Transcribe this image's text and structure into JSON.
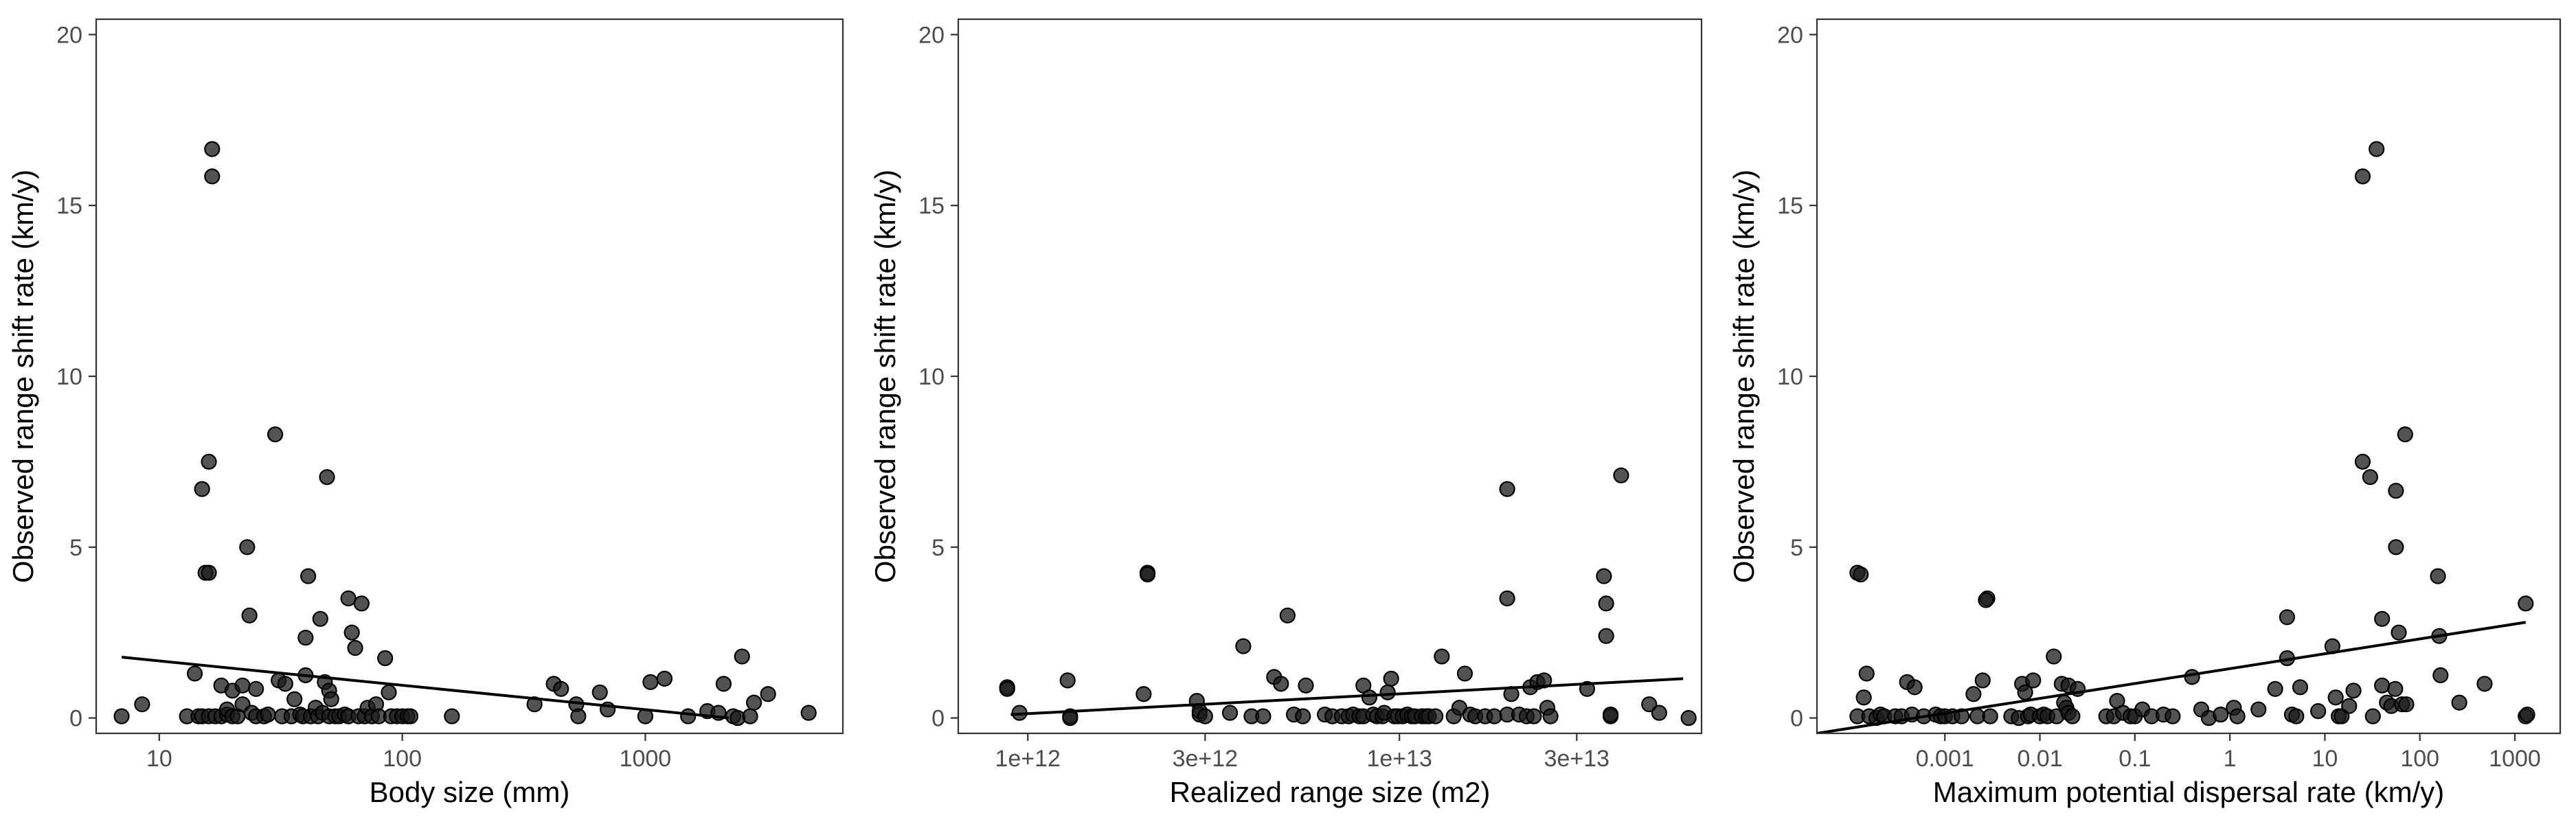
{
  "chart_data": [
    {
      "type": "scatter",
      "xscale": "log",
      "xlabel": "Body size (mm)",
      "ylabel": "Observed range shift rate (km/y)",
      "xlim": [
        5.5,
        6500
      ],
      "ylim": [
        -0.45,
        20.45
      ],
      "grid": false,
      "xticks": [
        10,
        100,
        1000
      ],
      "xtick_labels": [
        "10",
        "100",
        "1000"
      ],
      "yticks": [
        0,
        5,
        10,
        15,
        20
      ],
      "ytick_labels": [
        "0",
        "5",
        "10",
        "15",
        "20"
      ],
      "fit_line": [
        [
          7,
          1.78
        ],
        [
          2200,
          0.0
        ]
      ],
      "points": [
        [
          7,
          0.05
        ],
        [
          8.5,
          0.4
        ],
        [
          13,
          0.05
        ],
        [
          14,
          1.3
        ],
        [
          15,
          6.7
        ],
        [
          15.5,
          4.25
        ],
        [
          16,
          4.25
        ],
        [
          16,
          7.5
        ],
        [
          16.5,
          15.85
        ],
        [
          16.5,
          16.65
        ],
        [
          14.5,
          0.05
        ],
        [
          15,
          0.05
        ],
        [
          16,
          0.05
        ],
        [
          17,
          0.05
        ],
        [
          18,
          0.05
        ],
        [
          18,
          0.95
        ],
        [
          19,
          0.1
        ],
        [
          19,
          0.25
        ],
        [
          20,
          0.05
        ],
        [
          20,
          0.8
        ],
        [
          21,
          0.05
        ],
        [
          22,
          0.4
        ],
        [
          22,
          0.95
        ],
        [
          23,
          5.0
        ],
        [
          23.5,
          3.0
        ],
        [
          24,
          0.15
        ],
        [
          25,
          0.05
        ],
        [
          25,
          0.85
        ],
        [
          27,
          0.05
        ],
        [
          28,
          0.1
        ],
        [
          30,
          8.3
        ],
        [
          31,
          1.1
        ],
        [
          32,
          0.05
        ],
        [
          33,
          1.0
        ],
        [
          35,
          0.05
        ],
        [
          36,
          0.55
        ],
        [
          38,
          0.1
        ],
        [
          39,
          0.05
        ],
        [
          40,
          1.25
        ],
        [
          40,
          2.35
        ],
        [
          41,
          4.15
        ],
        [
          42,
          0.05
        ],
        [
          44,
          0.3
        ],
        [
          45,
          0.05
        ],
        [
          46,
          2.9
        ],
        [
          47,
          0.15
        ],
        [
          48,
          1.05
        ],
        [
          49,
          7.05
        ],
        [
          50,
          0.05
        ],
        [
          50,
          0.8
        ],
        [
          51,
          0.55
        ],
        [
          53,
          0.05
        ],
        [
          55,
          0.05
        ],
        [
          58,
          0.1
        ],
        [
          60,
          3.5
        ],
        [
          60,
          0.05
        ],
        [
          62,
          2.5
        ],
        [
          64,
          2.05
        ],
        [
          66,
          0.05
        ],
        [
          68,
          3.35
        ],
        [
          70,
          0.05
        ],
        [
          72,
          0.3
        ],
        [
          75,
          0.05
        ],
        [
          78,
          0.4
        ],
        [
          80,
          0.05
        ],
        [
          85,
          1.75
        ],
        [
          88,
          0.75
        ],
        [
          90,
          0.05
        ],
        [
          95,
          0.05
        ],
        [
          100,
          0.05
        ],
        [
          105,
          0.05
        ],
        [
          108,
          0.05
        ],
        [
          160,
          0.05
        ],
        [
          350,
          0.4
        ],
        [
          420,
          1.0
        ],
        [
          450,
          0.85
        ],
        [
          520,
          0.4
        ],
        [
          530,
          0.05
        ],
        [
          650,
          0.75
        ],
        [
          700,
          0.25
        ],
        [
          1000,
          0.05
        ],
        [
          1050,
          1.05
        ],
        [
          1200,
          1.15
        ],
        [
          1500,
          0.05
        ],
        [
          1800,
          0.2
        ],
        [
          2000,
          0.15
        ],
        [
          2100,
          1.0
        ],
        [
          2300,
          0.05
        ],
        [
          2400,
          0.0
        ],
        [
          2500,
          1.8
        ],
        [
          2700,
          0.05
        ],
        [
          2800,
          0.45
        ],
        [
          3200,
          0.7
        ],
        [
          4700,
          0.15
        ]
      ]
    },
    {
      "type": "scatter",
      "xscale": "log",
      "xlabel": "Realized range size (m2)",
      "ylabel": "Observed range shift rate (km/y)",
      "xlim": [
        650000000000.0,
        65000000000000.0
      ],
      "ylim": [
        -0.45,
        20.45
      ],
      "grid": false,
      "xticks": [
        1000000000000.0,
        3000000000000.0,
        10000000000000.0,
        30000000000000.0
      ],
      "xtick_labels": [
        "1e+12",
        "3e+12",
        "1e+13",
        "3e+13"
      ],
      "yticks": [
        0,
        5,
        10,
        15,
        20
      ],
      "ytick_labels": [
        "0",
        "5",
        "10",
        "15",
        "20"
      ],
      "fit_line": [
        [
          900000000000.0,
          0.1
        ],
        [
          58000000000000.0,
          1.15
        ]
      ],
      "points": [
        [
          880000000000.0,
          0.9
        ],
        [
          880000000000.0,
          0.85
        ],
        [
          950000000000.0,
          0.15
        ],
        [
          1280000000000.0,
          1.1
        ],
        [
          1300000000000.0,
          0.05
        ],
        [
          1300000000000.0,
          0.0
        ],
        [
          2100000000000.0,
          4.25
        ],
        [
          2100000000000.0,
          4.2
        ],
        [
          2050000000000.0,
          0.7
        ],
        [
          2850000000000.0,
          0.5
        ],
        [
          2900000000000.0,
          0.1
        ],
        [
          2900000000000.0,
          0.2
        ],
        [
          3000000000000.0,
          0.05
        ],
        [
          3500000000000.0,
          0.15
        ],
        [
          3800000000000.0,
          2.1
        ],
        [
          4000000000000.0,
          0.05
        ],
        [
          4300000000000.0,
          0.05
        ],
        [
          4600000000000.0,
          1.2
        ],
        [
          4800000000000.0,
          1.0
        ],
        [
          5000000000000.0,
          3.0
        ],
        [
          5200000000000.0,
          0.1
        ],
        [
          5500000000000.0,
          0.05
        ],
        [
          5600000000000.0,
          0.95
        ],
        [
          6300000000000.0,
          0.1
        ],
        [
          6600000000000.0,
          0.05
        ],
        [
          7000000000000.0,
          0.05
        ],
        [
          7300000000000.0,
          0.05
        ],
        [
          7500000000000.0,
          0.1
        ],
        [
          7800000000000.0,
          0.05
        ],
        [
          8000000000000.0,
          0.05
        ],
        [
          8000000000000.0,
          0.95
        ],
        [
          8300000000000.0,
          0.6
        ],
        [
          8500000000000.0,
          0.1
        ],
        [
          8700000000000.0,
          0.05
        ],
        [
          9000000000000.0,
          0.05
        ],
        [
          9100000000000.0,
          0.15
        ],
        [
          9300000000000.0,
          0.75
        ],
        [
          9500000000000.0,
          1.15
        ],
        [
          9700000000000.0,
          0.05
        ],
        [
          9900000000000.0,
          0.05
        ],
        [
          10200000000000.0,
          0.05
        ],
        [
          10500000000000.0,
          0.1
        ],
        [
          10800000000000.0,
          0.05
        ],
        [
          11000000000000.0,
          0.05
        ],
        [
          11500000000000.0,
          0.05
        ],
        [
          11800000000000.0,
          0.05
        ],
        [
          12000000000000.0,
          0.05
        ],
        [
          12500000000000.0,
          0.05
        ],
        [
          13000000000000.0,
          1.8
        ],
        [
          14000000000000.0,
          0.05
        ],
        [
          14500000000000.0,
          0.3
        ],
        [
          15000000000000.0,
          1.3
        ],
        [
          15500000000000.0,
          0.1
        ],
        [
          16000000000000.0,
          0.05
        ],
        [
          17000000000000.0,
          0.05
        ],
        [
          18000000000000.0,
          0.05
        ],
        [
          19500000000000.0,
          6.7
        ],
        [
          19500000000000.0,
          3.5
        ],
        [
          19500000000000.0,
          0.1
        ],
        [
          20000000000000.0,
          0.7
        ],
        [
          21000000000000.0,
          0.1
        ],
        [
          22000000000000.0,
          0.05
        ],
        [
          22500000000000.0,
          0.9
        ],
        [
          23000000000000.0,
          0.05
        ],
        [
          23500000000000.0,
          1.05
        ],
        [
          24500000000000.0,
          1.1
        ],
        [
          25000000000000.0,
          0.3
        ],
        [
          25500000000000.0,
          0.05
        ],
        [
          32000000000000.0,
          0.85
        ],
        [
          35500000000000.0,
          4.15
        ],
        [
          36000000000000.0,
          3.35
        ],
        [
          36000000000000.0,
          2.4
        ],
        [
          37000000000000.0,
          0.05
        ],
        [
          37000000000000.0,
          0.1
        ],
        [
          39500000000000.0,
          7.1
        ],
        [
          47000000000000.0,
          0.4
        ],
        [
          50000000000000.0,
          0.15
        ],
        [
          60000000000000.0,
          0.0
        ]
      ]
    },
    {
      "type": "scatter",
      "xscale": "log",
      "xlabel": "Maximum potential dispersal rate (km/y)",
      "ylabel": "Observed range shift rate (km/y)",
      "xlim": [
        4.5e-05,
        3000
      ],
      "ylim": [
        -0.45,
        20.45
      ],
      "grid": false,
      "xticks": [
        0.001,
        0.01,
        0.1,
        1,
        10,
        100,
        1000
      ],
      "xtick_labels": [
        "0.001",
        "0.01",
        "0.1",
        "1",
        "10",
        "100",
        "1000"
      ],
      "yticks": [
        0,
        5,
        10,
        15,
        20
      ],
      "ytick_labels": [
        "0",
        "5",
        "10",
        "15",
        "20"
      ],
      "fit_line": [
        [
          4.5e-05,
          -0.45
        ],
        [
          1300,
          2.8
        ]
      ],
      "points": [
        [
          0.00012,
          4.25
        ],
        [
          0.00013,
          4.2
        ],
        [
          0.00012,
          0.05
        ],
        [
          0.00014,
          0.6
        ],
        [
          0.00015,
          1.3
        ],
        [
          0.00016,
          0.05
        ],
        [
          0.00019,
          0.0
        ],
        [
          0.00021,
          0.1
        ],
        [
          0.00023,
          0.05
        ],
        [
          0.0003,
          0.05
        ],
        [
          0.00035,
          0.05
        ],
        [
          0.0004,
          1.05
        ],
        [
          0.00045,
          0.1
        ],
        [
          0.00048,
          0.9
        ],
        [
          0.0006,
          0.05
        ],
        [
          0.0008,
          0.1
        ],
        [
          0.0009,
          0.05
        ],
        [
          0.001,
          0.05
        ],
        [
          0.0012,
          0.05
        ],
        [
          0.0015,
          0.05
        ],
        [
          0.002,
          0.7
        ],
        [
          0.0022,
          0.05
        ],
        [
          0.0025,
          1.1
        ],
        [
          0.0028,
          3.5
        ],
        [
          0.0027,
          3.45
        ],
        [
          0.003,
          0.05
        ],
        [
          0.005,
          0.05
        ],
        [
          0.006,
          0.0
        ],
        [
          0.0065,
          1.0
        ],
        [
          0.007,
          0.75
        ],
        [
          0.0075,
          0.05
        ],
        [
          0.008,
          0.1
        ],
        [
          0.0085,
          1.1
        ],
        [
          0.01,
          0.05
        ],
        [
          0.011,
          0.1
        ],
        [
          0.012,
          0.05
        ],
        [
          0.014,
          1.8
        ],
        [
          0.015,
          0.05
        ],
        [
          0.017,
          1.0
        ],
        [
          0.018,
          0.45
        ],
        [
          0.019,
          0.3
        ],
        [
          0.02,
          0.15
        ],
        [
          0.02,
          0.95
        ],
        [
          0.022,
          0.05
        ],
        [
          0.025,
          0.85
        ],
        [
          0.05,
          0.05
        ],
        [
          0.06,
          0.05
        ],
        [
          0.065,
          0.5
        ],
        [
          0.075,
          0.15
        ],
        [
          0.09,
          0.05
        ],
        [
          0.1,
          0.05
        ],
        [
          0.12,
          0.25
        ],
        [
          0.15,
          0.05
        ],
        [
          0.2,
          0.1
        ],
        [
          0.25,
          0.05
        ],
        [
          0.4,
          1.2
        ],
        [
          0.5,
          0.25
        ],
        [
          0.6,
          0.0
        ],
        [
          0.8,
          0.1
        ],
        [
          1.1,
          0.3
        ],
        [
          1.2,
          0.05
        ],
        [
          2.0,
          0.25
        ],
        [
          3.0,
          0.85
        ],
        [
          4.0,
          2.95
        ],
        [
          4.0,
          1.75
        ],
        [
          4.5,
          0.1
        ],
        [
          5.0,
          0.05
        ],
        [
          5.5,
          0.9
        ],
        [
          8.5,
          0.2
        ],
        [
          12,
          2.1
        ],
        [
          13,
          0.6
        ],
        [
          14,
          0.05
        ],
        [
          15,
          0.05
        ],
        [
          18,
          0.35
        ],
        [
          20,
          0.8
        ],
        [
          25,
          7.5
        ],
        [
          25,
          15.85
        ],
        [
          30,
          7.05
        ],
        [
          32,
          0.05
        ],
        [
          35,
          16.65
        ],
        [
          40,
          2.9
        ],
        [
          40,
          0.95
        ],
        [
          45,
          0.45
        ],
        [
          50,
          0.35
        ],
        [
          55,
          0.85
        ],
        [
          56,
          6.65
        ],
        [
          56,
          5.0
        ],
        [
          60,
          2.5
        ],
        [
          65,
          0.4
        ],
        [
          70,
          8.3
        ],
        [
          72,
          0.4
        ],
        [
          155,
          4.15
        ],
        [
          160,
          2.4
        ],
        [
          165,
          1.25
        ],
        [
          260,
          0.45
        ],
        [
          480,
          1.0
        ],
        [
          1300,
          3.35
        ],
        [
          1300,
          0.05
        ],
        [
          1350,
          0.1
        ]
      ]
    }
  ]
}
